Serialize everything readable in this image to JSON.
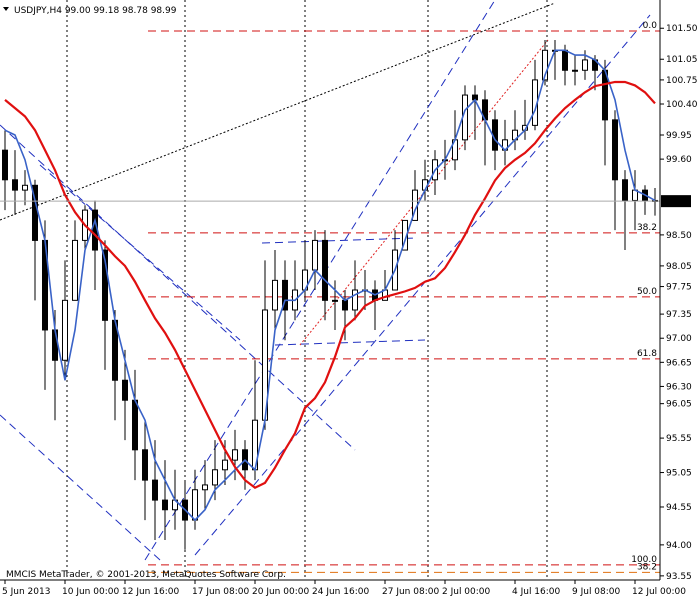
{
  "chart_data": {
    "type": "candlestick",
    "title": "USDJPY,H4  99.00 99.18 98.78 98.99",
    "watermark": "MMCIS MetaTrader, © 2001-2013, MetaQuotes Software Corp.",
    "categories": [
      "5 Jun 2013",
      null,
      null,
      null,
      null,
      null,
      "10 Jun 00:00",
      null,
      null,
      null,
      null,
      null,
      "12 Jun 16:00",
      null,
      null,
      null,
      null,
      null,
      null,
      "17 Jun 08:00",
      null,
      null,
      null,
      null,
      null,
      "20 Jun 00:00",
      null,
      null,
      null,
      null,
      null,
      "24 Jun 16:00",
      null,
      null,
      null,
      null,
      null,
      null,
      "27 Jun 08:00",
      null,
      null,
      null,
      null,
      null,
      "2 Jul 00:00",
      null,
      null,
      null,
      null,
      null,
      null,
      "4 Jul 16:00",
      null,
      null,
      null,
      null,
      null,
      "9 Jul 08:00",
      null,
      null,
      null,
      null,
      null,
      "12 Jul 00:00",
      null,
      null
    ],
    "open": [
      99.73,
      99.3,
      99.15,
      99.22,
      98.42,
      97.12,
      96.68,
      97.55,
      98.42,
      98.86,
      98.28,
      97.26,
      96.39,
      96.1,
      95.38,
      94.94,
      94.65,
      94.51,
      94.65,
      94.36,
      94.8,
      94.87,
      95.09,
      95.23,
      95.38,
      95.09,
      95.81,
      97.41,
      97.84,
      97.41,
      97.7,
      97.99,
      98.42,
      97.55,
      97.55,
      97.41,
      97.7,
      97.7,
      97.55,
      97.7,
      98.28,
      98.71,
      99.15,
      99.3,
      99.59,
      99.59,
      99.88,
      100.53,
      100.46,
      100.17,
      99.73,
      99.88,
      100.02,
      100.09,
      100.75,
      101.18,
      101.18,
      100.89,
      100.89,
      101.04,
      100.89,
      100.17,
      99.3,
      99.0,
      99.15,
      99.0
    ],
    "high": [
      100.02,
      99.73,
      99.44,
      99.3,
      98.71,
      97.41,
      98.13,
      98.71,
      98.93,
      99.0,
      98.42,
      97.41,
      96.83,
      96.54,
      95.81,
      95.52,
      95.23,
      95.09,
      94.94,
      95.09,
      95.23,
      95.52,
      95.52,
      95.67,
      95.52,
      96.68,
      98.13,
      98.28,
      98.13,
      98.13,
      98.42,
      98.57,
      98.57,
      97.84,
      97.7,
      98.13,
      97.99,
      97.84,
      97.99,
      98.57,
      98.71,
      99.44,
      99.59,
      99.73,
      99.88,
      100.31,
      100.67,
      100.67,
      100.6,
      100.31,
      100.17,
      100.31,
      100.46,
      101.04,
      101.33,
      101.33,
      101.26,
      101.11,
      101.18,
      101.11,
      101.04,
      100.31,
      99.44,
      99.44,
      99.22,
      99.18
    ],
    "low": [
      98.86,
      98.79,
      98.93,
      97.55,
      96.25,
      95.81,
      96.39,
      97.55,
      98.28,
      97.7,
      96.54,
      95.81,
      95.52,
      94.94,
      94.36,
      94.07,
      94.07,
      94.22,
      93.93,
      94.22,
      94.51,
      94.65,
      94.87,
      94.94,
      94.8,
      94.94,
      95.67,
      97.12,
      96.97,
      97.26,
      97.55,
      97.7,
      97.26,
      97.12,
      96.97,
      97.26,
      97.41,
      97.12,
      97.55,
      97.7,
      98.28,
      98.71,
      99.0,
      99.08,
      99.3,
      99.44,
      99.73,
      99.88,
      99.51,
      99.44,
      99.51,
      99.73,
      99.88,
      100.02,
      100.67,
      100.75,
      100.67,
      100.67,
      100.75,
      100.6,
      99.51,
      98.57,
      98.28,
      98.57,
      98.79,
      98.78
    ],
    "close": [
      99.3,
      99.15,
      99.22,
      98.42,
      97.12,
      96.68,
      97.55,
      98.42,
      98.86,
      98.28,
      97.26,
      96.39,
      96.1,
      95.38,
      94.94,
      94.65,
      94.51,
      94.65,
      94.36,
      94.8,
      94.87,
      95.09,
      95.23,
      95.38,
      95.09,
      95.81,
      97.41,
      97.84,
      97.41,
      97.7,
      97.99,
      98.42,
      97.55,
      97.55,
      97.41,
      97.7,
      97.7,
      97.55,
      97.7,
      98.28,
      98.71,
      99.15,
      99.3,
      99.59,
      99.59,
      99.88,
      100.53,
      100.46,
      100.17,
      99.73,
      99.88,
      100.02,
      100.09,
      100.75,
      101.18,
      101.18,
      100.89,
      100.89,
      101.04,
      100.89,
      100.17,
      99.3,
      99.0,
      99.15,
      99.0,
      98.99
    ],
    "up_color": "#ffffff",
    "down_color": "#000000",
    "lines": [
      {
        "color": "#3a63c8",
        "values": [
          100.02,
          99.95,
          99.59,
          99.0,
          98.42,
          97.12,
          96.39,
          97.12,
          98.28,
          98.71,
          98.13,
          97.26,
          96.68,
          96.1,
          95.81,
          95.23,
          94.94,
          94.65,
          94.51,
          94.36,
          94.51,
          94.8,
          94.94,
          95.09,
          95.23,
          95.09,
          95.81,
          97.12,
          97.55,
          97.55,
          97.7,
          97.99,
          97.84,
          97.7,
          97.55,
          97.63,
          97.7,
          97.63,
          97.7,
          97.99,
          98.42,
          98.86,
          99.15,
          99.44,
          99.59,
          99.88,
          100.31,
          100.46,
          100.17,
          99.88,
          99.73,
          99.88,
          100.02,
          100.31,
          100.82,
          101.18,
          101.18,
          101.11,
          101.11,
          101.04,
          100.89,
          100.46,
          99.73,
          99.15,
          99.08,
          99.0
        ]
      },
      {
        "color": "#e01010",
        "values": [
          100.46,
          100.34,
          100.22,
          100.02,
          99.73,
          99.44,
          99.08,
          98.83,
          98.64,
          98.5,
          98.35,
          98.19,
          98.05,
          97.82,
          97.55,
          97.29,
          97.08,
          96.83,
          96.54,
          96.25,
          95.96,
          95.67,
          95.38,
          95.13,
          94.94,
          94.83,
          94.9,
          95.12,
          95.38,
          95.62,
          95.99,
          96.13,
          96.36,
          96.73,
          97.16,
          97.29,
          97.47,
          97.55,
          97.6,
          97.64,
          97.68,
          97.73,
          97.82,
          97.87,
          98.02,
          98.25,
          98.5,
          98.79,
          99.03,
          99.29,
          99.47,
          99.59,
          99.69,
          99.83,
          100.02,
          100.19,
          100.34,
          100.46,
          100.57,
          100.66,
          100.69,
          100.72,
          100.72,
          100.67,
          100.57,
          100.41
        ]
      }
    ],
    "levels": [
      {
        "label": "0.0",
        "value": 101.46,
        "color": "#d01010"
      },
      {
        "label": "38.2",
        "value": 98.53,
        "color": "#d01010"
      },
      {
        "label": "50.0",
        "value": 97.6,
        "color": "#d01010"
      },
      {
        "label": "61.8",
        "value": 96.7,
        "color": "#d01010"
      },
      {
        "label": "100.0",
        "value": 93.71,
        "color": "#d01010"
      },
      {
        "label": "38.2",
        "value": 93.6,
        "color": "#e07010"
      }
    ],
    "last_price": 98.99,
    "ylim": [
      93.49,
      101.91
    ],
    "yticks": [
      {
        "value": 101.5,
        "label": "101.50"
      },
      101.05,
      100.75,
      {
        "value": 100.4,
        "label": "100.40"
      },
      99.95,
      {
        "value": 99.6,
        "label": "99.60"
      },
      {
        "value": 98.5,
        "label": "98.50"
      },
      98.05,
      97.75,
      97.35,
      {
        "value": 97.0,
        "label": "97.00"
      },
      96.65,
      {
        "value": 96.3,
        "label": "96.30"
      },
      96.05,
      95.55,
      95.05,
      94.55,
      {
        "value": 94.0,
        "label": "94.00"
      },
      93.55
    ]
  }
}
